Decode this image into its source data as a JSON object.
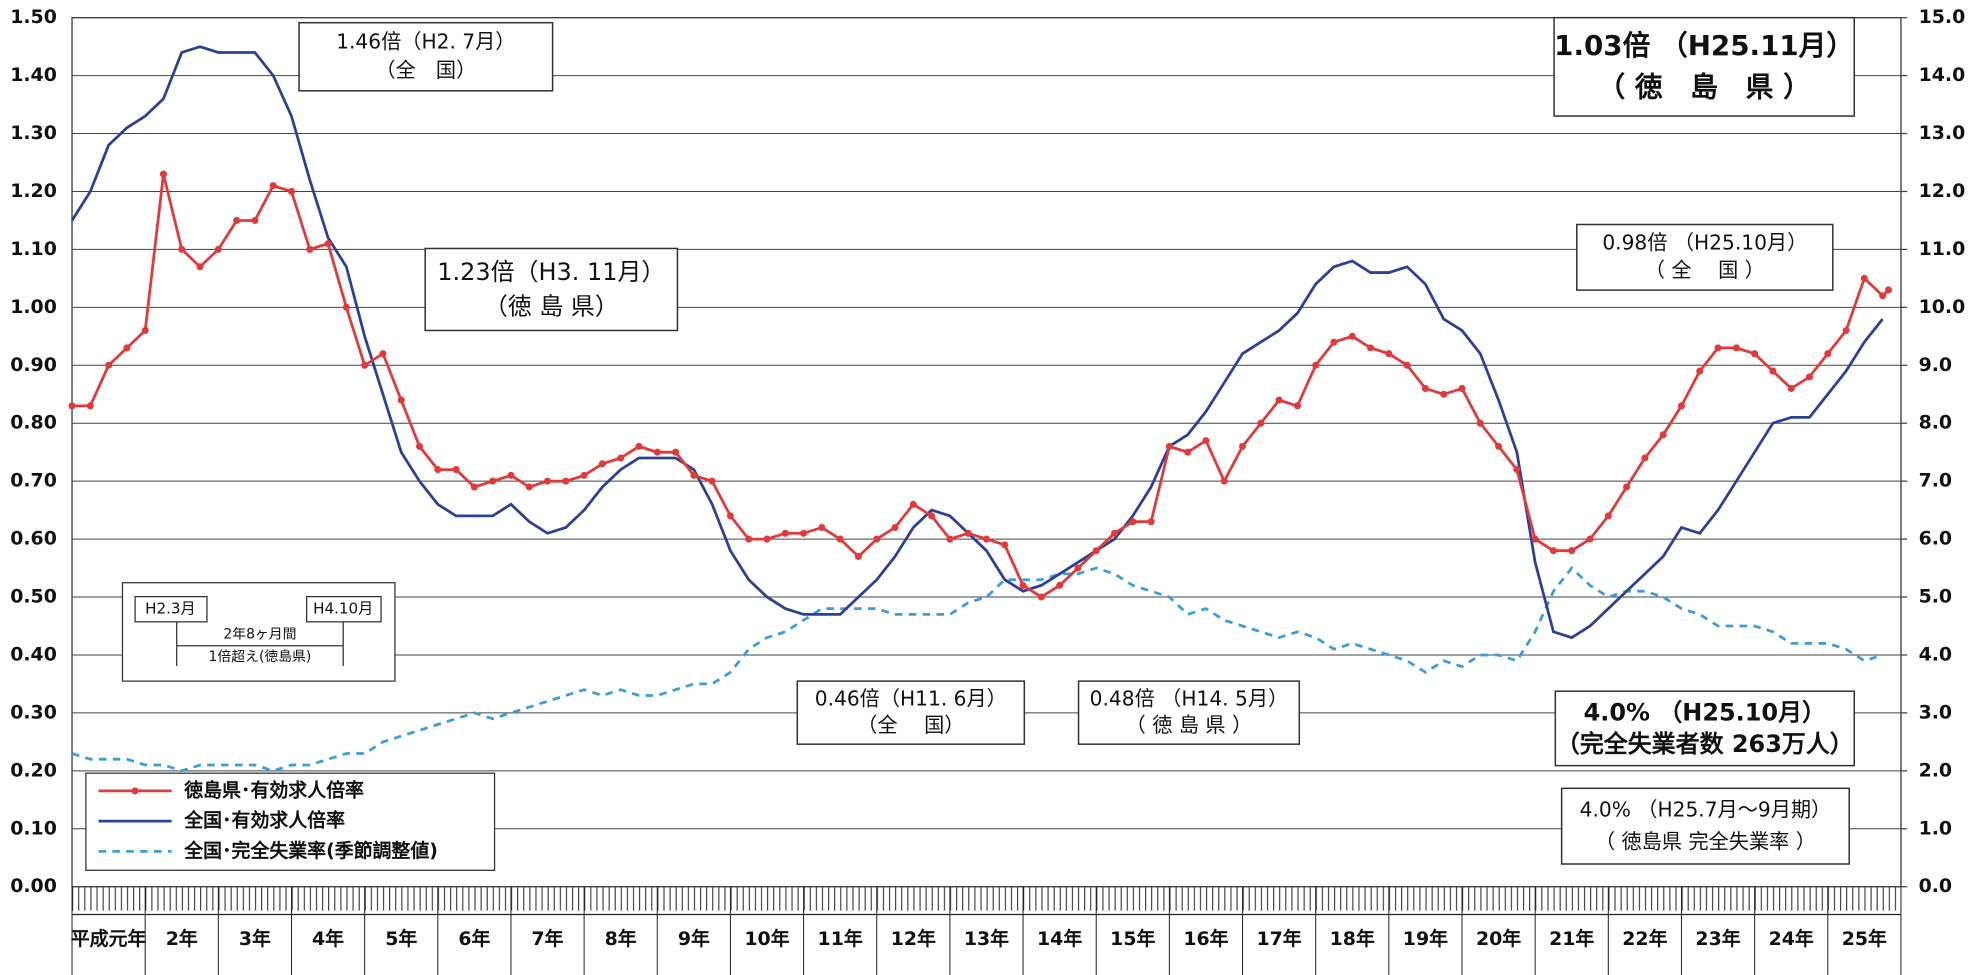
{
  "chart_data": {
    "type": "line",
    "x": [
      1,
      1.25,
      1.5,
      1.75,
      2,
      2.25,
      2.5,
      2.75,
      3,
      3.25,
      3.5,
      3.75,
      4,
      4.25,
      4.5,
      4.75,
      5,
      5.25,
      5.5,
      5.75,
      6,
      6.25,
      6.5,
      6.75,
      7,
      7.25,
      7.5,
      7.75,
      8,
      8.25,
      8.5,
      8.75,
      9,
      9.25,
      9.5,
      9.75,
      10,
      10.25,
      10.5,
      10.75,
      11,
      11.25,
      11.5,
      11.75,
      12,
      12.25,
      12.5,
      12.75,
      13,
      13.25,
      13.5,
      13.75,
      14,
      14.25,
      14.5,
      14.75,
      15,
      15.25,
      15.5,
      15.75,
      16,
      16.25,
      16.5,
      16.75,
      17,
      17.25,
      17.5,
      17.75,
      18,
      18.25,
      18.5,
      18.75,
      19,
      19.25,
      19.5,
      19.75,
      20,
      20.25,
      20.5,
      20.75,
      21,
      21.25,
      21.5,
      21.75,
      22,
      22.25,
      22.5,
      22.75,
      23,
      23.25,
      23.5,
      23.75,
      24,
      24.25,
      24.5,
      24.75,
      25,
      25.25,
      25.5,
      25.75,
      25.83
    ],
    "xlim": [
      1,
      26
    ],
    "xticks": [
      {
        "value": 1.5,
        "label": "平成元年"
      },
      {
        "value": 2.5,
        "label": "2年"
      },
      {
        "value": 3.5,
        "label": "3年"
      },
      {
        "value": 4.5,
        "label": "4年"
      },
      {
        "value": 5.5,
        "label": "5年"
      },
      {
        "value": 6.5,
        "label": "6年"
      },
      {
        "value": 7.5,
        "label": "7年"
      },
      {
        "value": 8.5,
        "label": "8年"
      },
      {
        "value": 9.5,
        "label": "9年"
      },
      {
        "value": 10.5,
        "label": "10年"
      },
      {
        "value": 11.5,
        "label": "11年"
      },
      {
        "value": 12.5,
        "label": "12年"
      },
      {
        "value": 13.5,
        "label": "13年"
      },
      {
        "value": 14.5,
        "label": "14年"
      },
      {
        "value": 15.5,
        "label": "15年"
      },
      {
        "value": 16.5,
        "label": "16年"
      },
      {
        "value": 17.5,
        "label": "17年"
      },
      {
        "value": 18.5,
        "label": "18年"
      },
      {
        "value": 19.5,
        "label": "19年"
      },
      {
        "value": 20.5,
        "label": "20年"
      },
      {
        "value": 21.5,
        "label": "21年"
      },
      {
        "value": 22.5,
        "label": "22年"
      },
      {
        "value": 23.5,
        "label": "23年"
      },
      {
        "value": 24.5,
        "label": "24年"
      },
      {
        "value": 25.5,
        "label": "25年"
      }
    ],
    "ylim": [
      0,
      1.5
    ],
    "yticks": [
      {
        "value": 0,
        "label": "0.00"
      },
      {
        "value": 0.1,
        "label": "0.10"
      },
      {
        "value": 0.2,
        "label": "0.20"
      },
      {
        "value": 0.3,
        "label": "0.30"
      },
      {
        "value": 0.4,
        "label": "0.40"
      },
      {
        "value": 0.5,
        "label": "0.50"
      },
      {
        "value": 0.6,
        "label": "0.60"
      },
      {
        "value": 0.7,
        "label": "0.70"
      },
      {
        "value": 0.8,
        "label": "0.80"
      },
      {
        "value": 0.9,
        "label": "0.90"
      },
      {
        "value": 1,
        "label": "1.00"
      },
      {
        "value": 1.1,
        "label": "1.10"
      },
      {
        "value": 1.2,
        "label": "1.20"
      },
      {
        "value": 1.3,
        "label": "1.30"
      },
      {
        "value": 1.4,
        "label": "1.40"
      },
      {
        "value": 1.5,
        "label": "1.50"
      }
    ],
    "y2lim": [
      0,
      15
    ],
    "y2ticks": [
      {
        "value": 0,
        "label": "0.0"
      },
      {
        "value": 1,
        "label": "1.0"
      },
      {
        "value": 2,
        "label": "2.0"
      },
      {
        "value": 3,
        "label": "3.0"
      },
      {
        "value": 4,
        "label": "4.0"
      },
      {
        "value": 5,
        "label": "5.0"
      },
      {
        "value": 6,
        "label": "6.0"
      },
      {
        "value": 7,
        "label": "7.0"
      },
      {
        "value": 8,
        "label": "8.0"
      },
      {
        "value": 9,
        "label": "9.0"
      },
      {
        "value": 10,
        "label": "10.0"
      },
      {
        "value": 11,
        "label": "11.0"
      },
      {
        "value": 12,
        "label": "12.0"
      },
      {
        "value": 13,
        "label": "13.0"
      },
      {
        "value": 14,
        "label": "14.0"
      },
      {
        "value": 15,
        "label": "15.0"
      }
    ],
    "grid": true,
    "legend": "lower left",
    "series": [
      {
        "name": "徳島県･有効求人倍率",
        "color": "#e23a3a",
        "markers": true,
        "line_style": "solid",
        "values": [
          0.83,
          0.83,
          0.9,
          0.93,
          0.96,
          1.23,
          1.1,
          1.07,
          1.1,
          1.15,
          1.15,
          1.21,
          1.2,
          1.1,
          1.11,
          1.0,
          0.9,
          0.92,
          0.84,
          0.76,
          0.72,
          0.72,
          0.69,
          0.7,
          0.71,
          0.69,
          0.7,
          0.7,
          0.71,
          0.73,
          0.74,
          0.76,
          0.75,
          0.75,
          0.71,
          0.7,
          0.64,
          0.6,
          0.6,
          0.61,
          0.61,
          0.62,
          0.6,
          0.57,
          0.6,
          0.62,
          0.66,
          0.64,
          0.6,
          0.61,
          0.6,
          0.59,
          0.52,
          0.5,
          0.52,
          0.55,
          0.58,
          0.61,
          0.63,
          0.63,
          0.76,
          0.75,
          0.77,
          0.7,
          0.76,
          0.8,
          0.84,
          0.83,
          0.9,
          0.94,
          0.95,
          0.93,
          0.92,
          0.9,
          0.86,
          0.85,
          0.86,
          0.8,
          0.76,
          0.72,
          0.6,
          0.58,
          0.58,
          0.6,
          0.64,
          0.69,
          0.74,
          0.78,
          0.83,
          0.89,
          0.93,
          0.93,
          0.92,
          0.89,
          0.86,
          0.88,
          0.92,
          0.96,
          1.05,
          1.02,
          1.03
        ]
      },
      {
        "name": "全国･有効求人倍率",
        "color": "#2c4099",
        "markers": false,
        "line_style": "solid",
        "values": [
          1.15,
          1.2,
          1.28,
          1.31,
          1.33,
          1.36,
          1.44,
          1.45,
          1.44,
          1.44,
          1.44,
          1.4,
          1.33,
          1.22,
          1.12,
          1.07,
          0.95,
          0.85,
          0.75,
          0.7,
          0.66,
          0.64,
          0.64,
          0.64,
          0.66,
          0.63,
          0.61,
          0.62,
          0.65,
          0.69,
          0.72,
          0.74,
          0.74,
          0.74,
          0.72,
          0.66,
          0.58,
          0.53,
          0.5,
          0.48,
          0.47,
          0.47,
          0.47,
          0.5,
          0.53,
          0.57,
          0.62,
          0.65,
          0.64,
          0.61,
          0.58,
          0.53,
          0.51,
          0.52,
          0.54,
          0.56,
          0.58,
          0.6,
          0.64,
          0.69,
          0.76,
          0.78,
          0.82,
          0.87,
          0.92,
          0.94,
          0.96,
          0.99,
          1.04,
          1.07,
          1.08,
          1.06,
          1.06,
          1.07,
          1.04,
          0.98,
          0.96,
          0.92,
          0.84,
          0.75,
          0.56,
          0.44,
          0.43,
          0.45,
          0.48,
          0.51,
          0.54,
          0.57,
          0.62,
          0.61,
          0.65,
          0.7,
          0.75,
          0.8,
          0.81,
          0.81,
          0.85,
          0.89,
          0.94,
          0.98,
          null
        ]
      },
      {
        "name": "全国･完全失業率(季節調整値)",
        "color": "#3a9fd8",
        "markers": false,
        "line_style": "dashed",
        "axis": "y2",
        "values": [
          2.3,
          2.2,
          2.2,
          2.2,
          2.1,
          2.1,
          2.0,
          2.1,
          2.1,
          2.1,
          2.1,
          2.0,
          2.1,
          2.1,
          2.2,
          2.3,
          2.3,
          2.5,
          2.6,
          2.7,
          2.8,
          2.9,
          3.0,
          2.9,
          3.0,
          3.1,
          3.2,
          3.3,
          3.4,
          3.3,
          3.4,
          3.3,
          3.3,
          3.4,
          3.5,
          3.5,
          3.7,
          4.1,
          4.3,
          4.4,
          4.6,
          4.8,
          4.8,
          4.8,
          4.8,
          4.7,
          4.7,
          4.7,
          4.7,
          4.9,
          5.0,
          5.3,
          5.3,
          5.3,
          5.4,
          5.4,
          5.5,
          5.4,
          5.2,
          5.1,
          5.0,
          4.7,
          4.8,
          4.6,
          4.5,
          4.4,
          4.3,
          4.4,
          4.3,
          4.1,
          4.2,
          4.1,
          4.0,
          3.9,
          3.7,
          3.9,
          3.8,
          4.0,
          4.0,
          3.9,
          4.4,
          5.1,
          5.5,
          5.2,
          5.0,
          5.1,
          5.1,
          5.0,
          4.8,
          4.7,
          4.5,
          4.5,
          4.5,
          4.4,
          4.2,
          4.2,
          4.2,
          4.1,
          3.9,
          4.0,
          null
        ]
      }
    ],
    "annotations": [
      {
        "lines": [
          "1.46倍（H2. 7月）",
          "（全　国）"
        ]
      },
      {
        "lines": [
          "1.03倍 （H25.11月）",
          "（ 徳　島　県 ）"
        ]
      },
      {
        "lines": [
          "1.23倍（H3. 11月）",
          "（徳 島 県）"
        ]
      },
      {
        "lines": [
          "0.98倍 （H25.10月）",
          "（ 全　 国 ）"
        ]
      },
      {
        "lines": [
          "0.46倍（H11. 6月）",
          "（全　 国）"
        ]
      },
      {
        "lines": [
          "0.48倍 （H14. 5月）",
          "（ 徳 島 県 ）"
        ]
      },
      {
        "lines": [
          "4.0% （H25.10月）",
          "（完全失業者数 263万人）"
        ]
      },
      {
        "lines": [
          "4.0% （H25.7月～9月期）",
          "（ 徳島県 完全失業率 ）"
        ]
      },
      {
        "lines": [
          "H2.3月",
          "H4.10月",
          "2年8ヶ月間",
          "1倍超え(徳島県)"
        ]
      }
    ]
  }
}
